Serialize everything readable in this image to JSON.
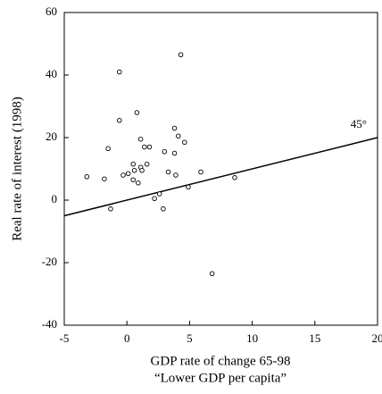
{
  "chart_data": {
    "type": "scatter",
    "xlabel": [
      "GDP rate of change 65-98",
      "“Lower GDP per capita”"
    ],
    "ylabel": "Real rate of interest (1998)",
    "x": [
      -3.2,
      -1.8,
      -1.5,
      -1.3,
      -0.6,
      -0.6,
      -0.3,
      0.1,
      0.5,
      0.5,
      0.6,
      0.8,
      0.9,
      1.1,
      1.1,
      1.2,
      1.4,
      1.6,
      1.8,
      2.2,
      2.6,
      2.9,
      3.0,
      3.3,
      3.8,
      3.8,
      3.9,
      4.1,
      4.3,
      4.6,
      4.9,
      5.9,
      6.8,
      8.6
    ],
    "values": [
      7.5,
      6.8,
      16.5,
      -2.8,
      41,
      25.5,
      8,
      8.5,
      11.5,
      6.5,
      9.5,
      28,
      5.5,
      19.5,
      10.5,
      9.5,
      17,
      11.5,
      17,
      0.5,
      2,
      -2.8,
      15.5,
      9,
      15,
      23,
      8,
      20.5,
      46.5,
      18.5,
      4.2,
      9,
      -23.5,
      7.2
    ],
    "reference_line": {
      "x": [
        -5,
        20
      ],
      "y": [
        -5,
        20
      ],
      "label": "45°"
    },
    "xlim": [
      -5,
      20
    ],
    "xticks": [
      -5,
      0,
      5,
      10,
      15,
      20
    ],
    "ylim": [
      -40,
      60
    ],
    "yticks": [
      -40,
      -20,
      0,
      20,
      40,
      60
    ]
  }
}
